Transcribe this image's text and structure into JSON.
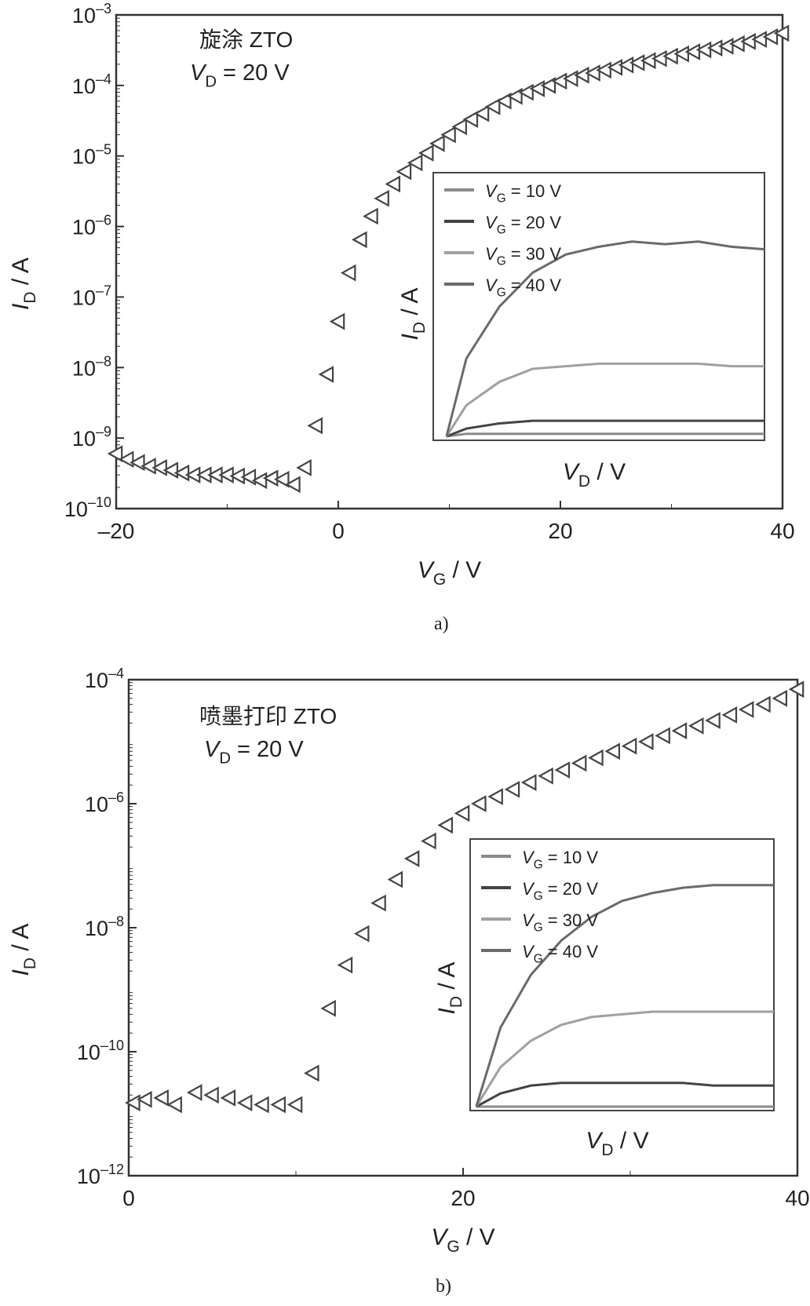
{
  "chart_data": [
    {
      "type": "scatter",
      "panel": "a",
      "caption": "a)",
      "annotation_title": "旋涂 ZTO",
      "annotation_vd": "V_D = 20 V",
      "xlabel": "V_G / V",
      "ylabel": "I_D / A",
      "xlim": [
        -20,
        40
      ],
      "ylim_log10": [
        -10,
        -3
      ],
      "log_y": true,
      "xticks": [
        -20,
        0,
        20,
        40
      ],
      "xtick_labels": [
        "–20",
        "0",
        "20",
        "40"
      ],
      "yticks_exp": [
        -10,
        -9,
        -8,
        -7,
        -6,
        -5,
        -4,
        -3
      ],
      "marker": "left-triangle",
      "x": [
        -20,
        -19,
        -18,
        -17,
        -16,
        -15,
        -14,
        -13,
        -12,
        -11,
        -10,
        -9,
        -8,
        -7,
        -6,
        -5,
        -4,
        -3,
        -2,
        -1,
        0,
        1,
        2,
        3,
        4,
        5,
        6,
        7,
        8,
        9,
        10,
        11,
        12,
        13,
        14,
        15,
        16,
        17,
        18,
        19,
        20,
        21,
        22,
        23,
        24,
        25,
        26,
        27,
        28,
        29,
        30,
        31,
        32,
        33,
        34,
        35,
        36,
        37,
        38,
        39,
        40
      ],
      "y": [
        6e-10,
        5e-10,
        4.5e-10,
        4e-10,
        3.8e-10,
        3.5e-10,
        3.2e-10,
        3e-10,
        3e-10,
        3e-10,
        3e-10,
        2.9e-10,
        2.8e-10,
        2.5e-10,
        2.7e-10,
        2.6e-10,
        2.2e-10,
        3.8e-10,
        1.5e-09,
        8e-09,
        4.5e-08,
        2.2e-07,
        6.5e-07,
        1.4e-06,
        2.5e-06,
        4e-06,
        6e-06,
        8e-06,
        1.1e-05,
        1.5e-05,
        2e-05,
        2.6e-05,
        3.3e-05,
        4e-05,
        5e-05,
        6e-05,
        7e-05,
        8e-05,
        9e-05,
        0.0001,
        0.000115,
        0.000125,
        0.00014,
        0.00015,
        0.000165,
        0.00018,
        0.000195,
        0.00021,
        0.000225,
        0.00024,
        0.00026,
        0.00028,
        0.0003,
        0.00032,
        0.00034,
        0.00036,
        0.00039,
        0.00042,
        0.00045,
        0.00049,
        0.00055
      ],
      "inset": {
        "xlabel": "V_D / V",
        "ylabel": "I_D / A",
        "legend": [
          "V_G = 10 V",
          "V_G = 20 V",
          "V_G = 30 V",
          "V_G = 40 V"
        ],
        "colors": [
          "#8a8a8a",
          "#444444",
          "#a0a0a0",
          "#6a6a6a"
        ],
        "x": [
          0.04,
          0.1,
          0.2,
          0.3,
          0.4,
          0.5,
          0.6,
          0.7,
          0.8,
          0.9,
          1.0
        ],
        "series": [
          [
            0,
            0.01,
            0.01,
            0.01,
            0.01,
            0.01,
            0.01,
            0.01,
            0.01,
            0.01,
            0.01
          ],
          [
            0,
            0.03,
            0.05,
            0.06,
            0.06,
            0.06,
            0.06,
            0.06,
            0.06,
            0.06,
            0.06
          ],
          [
            0,
            0.12,
            0.21,
            0.26,
            0.27,
            0.28,
            0.28,
            0.28,
            0.28,
            0.27,
            0.27
          ],
          [
            0,
            0.3,
            0.5,
            0.63,
            0.7,
            0.73,
            0.75,
            0.74,
            0.75,
            0.73,
            0.72
          ]
        ]
      }
    },
    {
      "type": "scatter",
      "panel": "b",
      "caption": "b)",
      "annotation_title": "喷墨打印 ZTO",
      "annotation_vd": "V_D = 20 V",
      "xlabel": "V_G / V",
      "ylabel": "I_D / A",
      "xlim": [
        0,
        40
      ],
      "ylim_log10": [
        -12,
        -4
      ],
      "log_y": true,
      "xticks": [
        0,
        20,
        40
      ],
      "xtick_labels": [
        "0",
        "20",
        "40"
      ],
      "yticks_exp": [
        -12,
        -10,
        -8,
        -6,
        -4
      ],
      "marker": "left-triangle",
      "x": [
        0.3,
        1,
        2,
        2.8,
        4,
        5,
        6,
        7,
        8,
        9,
        10,
        11,
        12,
        13,
        14,
        15,
        16,
        17,
        18,
        19,
        20,
        21,
        22,
        23,
        24,
        25,
        26,
        27,
        28,
        29,
        30,
        31,
        32,
        33,
        34,
        35,
        36,
        37,
        38,
        39,
        40
      ],
      "y": [
        1.5e-11,
        1.7e-11,
        1.8e-11,
        1.4e-11,
        2.2e-11,
        2e-11,
        1.8e-11,
        1.5e-11,
        1.4e-11,
        1.4e-11,
        1.4e-11,
        4.5e-11,
        5e-10,
        2.5e-09,
        8e-09,
        2.5e-08,
        6e-08,
        1.3e-07,
        2.5e-07,
        4.5e-07,
        7e-07,
        1e-06,
        1.3e-06,
        1.7e-06,
        2.2e-06,
        2.8e-06,
        3.5e-06,
        4.5e-06,
        5.5e-06,
        7e-06,
        8.5e-06,
        1e-05,
        1.25e-05,
        1.5e-05,
        1.8e-05,
        2.2e-05,
        2.7e-05,
        3.3e-05,
        4e-05,
        5e-05,
        7e-05
      ],
      "inset": {
        "xlabel": "V_D / V",
        "ylabel": "I_D / A",
        "legend": [
          "V_G = 10 V",
          "V_G = 20 V",
          "V_G = 30 V",
          "V_G = 40 V"
        ],
        "colors": [
          "#8a8a8a",
          "#444444",
          "#a0a0a0",
          "#6a6a6a"
        ],
        "x": [
          0.02,
          0.1,
          0.2,
          0.3,
          0.4,
          0.5,
          0.6,
          0.7,
          0.8,
          0.9,
          1.0
        ],
        "series": [
          [
            0,
            0,
            0,
            0,
            0,
            0,
            0,
            0,
            0,
            0,
            0
          ],
          [
            0,
            0.05,
            0.08,
            0.09,
            0.09,
            0.09,
            0.09,
            0.09,
            0.08,
            0.08,
            0.08
          ],
          [
            0,
            0.15,
            0.25,
            0.31,
            0.34,
            0.35,
            0.36,
            0.36,
            0.36,
            0.36,
            0.36
          ],
          [
            0,
            0.3,
            0.5,
            0.63,
            0.72,
            0.78,
            0.81,
            0.83,
            0.84,
            0.84,
            0.84
          ]
        ]
      }
    }
  ]
}
